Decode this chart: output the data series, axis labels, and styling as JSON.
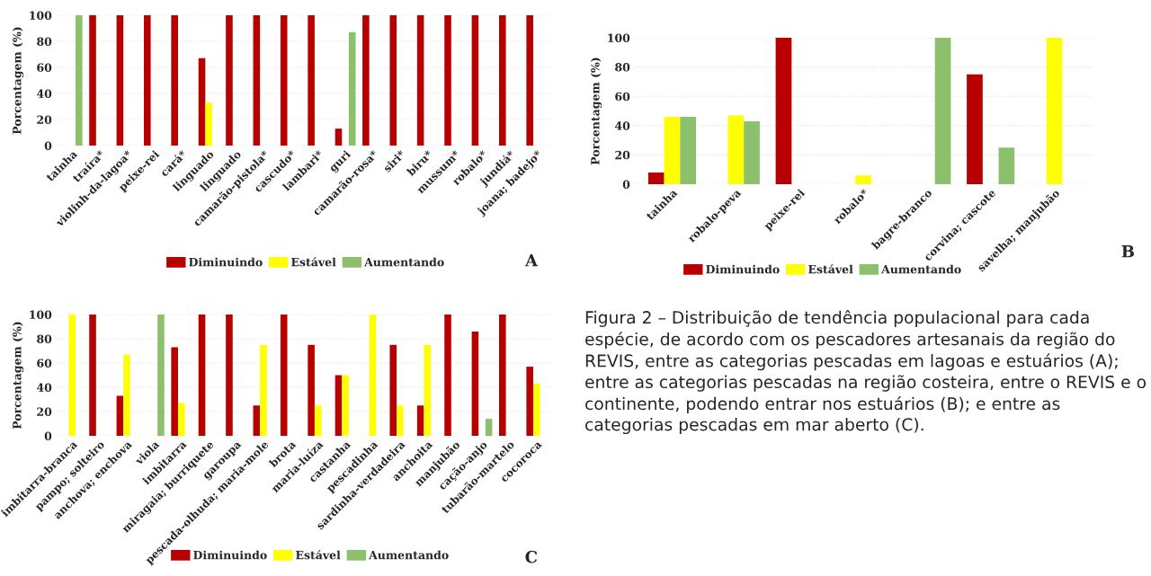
{
  "chart_data": [
    {
      "type": "bar",
      "ylabel": "Porcentagem (%)",
      "categories": [
        "tainha",
        "traíra*",
        "violinh-da-lagoa*",
        "peixe-rei",
        "cará*",
        "linguado",
        "linguado",
        "camarão-pistola*",
        "cascudo*",
        "lambari*",
        "guri",
        "camarão-rosa*",
        "siri*",
        "biru*",
        "mussum*",
        "robalo*",
        "jundiá*",
        "joana; badejo*"
      ],
      "series": [
        {
          "name": "Diminuindo",
          "color": "#b80000",
          "values": [
            0,
            100,
            100,
            100,
            100,
            67,
            100,
            100,
            100,
            100,
            13,
            100,
            100,
            100,
            100,
            100,
            100,
            100
          ]
        },
        {
          "name": "Estável",
          "color": "#ffff00",
          "values": [
            0,
            0,
            0,
            0,
            0,
            33,
            0,
            0,
            0,
            0,
            0,
            0,
            0,
            0,
            0,
            0,
            0,
            0
          ]
        },
        {
          "name": "Aumentando",
          "color": "#8cc06c",
          "values": [
            100,
            0,
            0,
            0,
            0,
            0,
            0,
            0,
            0,
            0,
            87,
            0,
            0,
            0,
            0,
            0,
            0,
            0
          ]
        }
      ],
      "ylim": [
        0,
        100
      ],
      "yticks": [
        0,
        20,
        40,
        60,
        80,
        100
      ],
      "grid": "y",
      "legend": "bottom",
      "annotations": [
        "A"
      ]
    },
    {
      "type": "bar",
      "ylabel": "Porcentagem (%)",
      "categories": [
        "tainha",
        "robalo-peva",
        "peixe-rei",
        "robalo*",
        "bagre-branco",
        "corvina; cascote",
        "savelha; manjubão"
      ],
      "series": [
        {
          "name": "Diminuindo",
          "color": "#b80000",
          "values": [
            8,
            0,
            100,
            0,
            0,
            75,
            0
          ]
        },
        {
          "name": "Estável",
          "color": "#ffff00",
          "values": [
            46,
            47,
            0,
            6,
            0,
            0,
            100
          ]
        },
        {
          "name": "Aumentando",
          "color": "#8cc06c",
          "values": [
            46,
            43,
            0,
            0,
            100,
            25,
            0
          ]
        }
      ],
      "ylim": [
        0,
        100
      ],
      "yticks": [
        0,
        20,
        40,
        60,
        80,
        100
      ],
      "grid": "y",
      "legend": "bottom",
      "annotations": [
        "B"
      ]
    },
    {
      "type": "bar",
      "ylabel": "Porcentagem (%)",
      "categories": [
        "imbitarra-branca",
        "pampo; solteiro",
        "anchova; enchova",
        "viola",
        "imbitarra",
        "miragaia; burriquete",
        "garoupa",
        "pescada-olhuda; maria-mole",
        "brota",
        "maria-luíza",
        "castanha",
        "pescadinha",
        "sardinha-verdadeira",
        "anchoita",
        "manjubão",
        "cação-anjo",
        "tubarão-martelo",
        "cocoroca"
      ],
      "series": [
        {
          "name": "Diminuindo",
          "color": "#b80000",
          "values": [
            0,
            100,
            33,
            0,
            73,
            100,
            100,
            25,
            100,
            75,
            50,
            0,
            75,
            25,
            100,
            86,
            100,
            57
          ]
        },
        {
          "name": "Estável",
          "color": "#ffff00",
          "values": [
            100,
            0,
            67,
            0,
            27,
            0,
            0,
            75,
            0,
            25,
            50,
            100,
            25,
            75,
            0,
            0,
            0,
            43
          ]
        },
        {
          "name": "Aumentando",
          "color": "#8cc06c",
          "values": [
            0,
            0,
            0,
            100,
            0,
            0,
            0,
            0,
            0,
            0,
            0,
            0,
            0,
            0,
            0,
            14,
            0,
            0
          ]
        }
      ],
      "ylim": [
        0,
        100
      ],
      "yticks": [
        0,
        20,
        40,
        60,
        80,
        100
      ],
      "grid": "y",
      "legend": "bottom",
      "annotations": [
        "C"
      ]
    },
    {
      "type": "other",
      "annotations": [
        "Figura 2 – Distribuição de tendência populacional para cada espécie, de acordo com os pescadores artesanais da região do REVIS, entre as categorias pescadas em lagoas e estuários (A); entre as categorias pescadas na região costeira, entre o REVIS e o continente, podendo entrar nos estuários (B); e entre as categorias pescadas em mar aberto (C)."
      ]
    }
  ]
}
